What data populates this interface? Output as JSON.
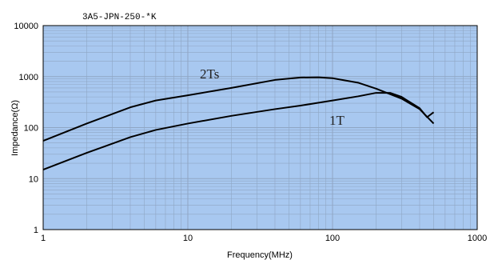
{
  "chart_data": {
    "type": "line",
    "title": "3A5-JPN-250-*K",
    "xlabel": "Frequency(MHz)",
    "ylabel": "Impedance(Ω)",
    "x_scale": "log",
    "y_scale": "log",
    "xlim": [
      1,
      1000
    ],
    "ylim": [
      1,
      10000
    ],
    "x_ticks": [
      1,
      10,
      100,
      1000
    ],
    "x_tick_labels": [
      "1",
      "10",
      "100",
      "1000"
    ],
    "y_ticks": [
      1,
      10,
      100,
      1000,
      10000
    ],
    "y_tick_labels": [
      "1",
      "10",
      "100",
      "1000",
      "10000"
    ],
    "grid": true,
    "plot_background": "#a8c8f0",
    "grid_color": "#8fa6c4",
    "line_color": "#000000",
    "series": [
      {
        "name": "2Ts",
        "x": [
          1,
          2,
          4,
          6,
          10,
          20,
          40,
          60,
          80,
          100,
          150,
          200,
          300,
          400,
          500
        ],
        "y": [
          55,
          120,
          250,
          340,
          430,
          600,
          860,
          960,
          970,
          930,
          760,
          580,
          370,
          230,
          120
        ]
      },
      {
        "name": "1T",
        "x": [
          1,
          2,
          4,
          6,
          10,
          20,
          40,
          60,
          100,
          150,
          200,
          250,
          300,
          400,
          450,
          500
        ],
        "y": [
          15,
          32,
          65,
          90,
          120,
          170,
          230,
          270,
          340,
          410,
          480,
          480,
          400,
          240,
          160,
          200
        ]
      }
    ]
  }
}
